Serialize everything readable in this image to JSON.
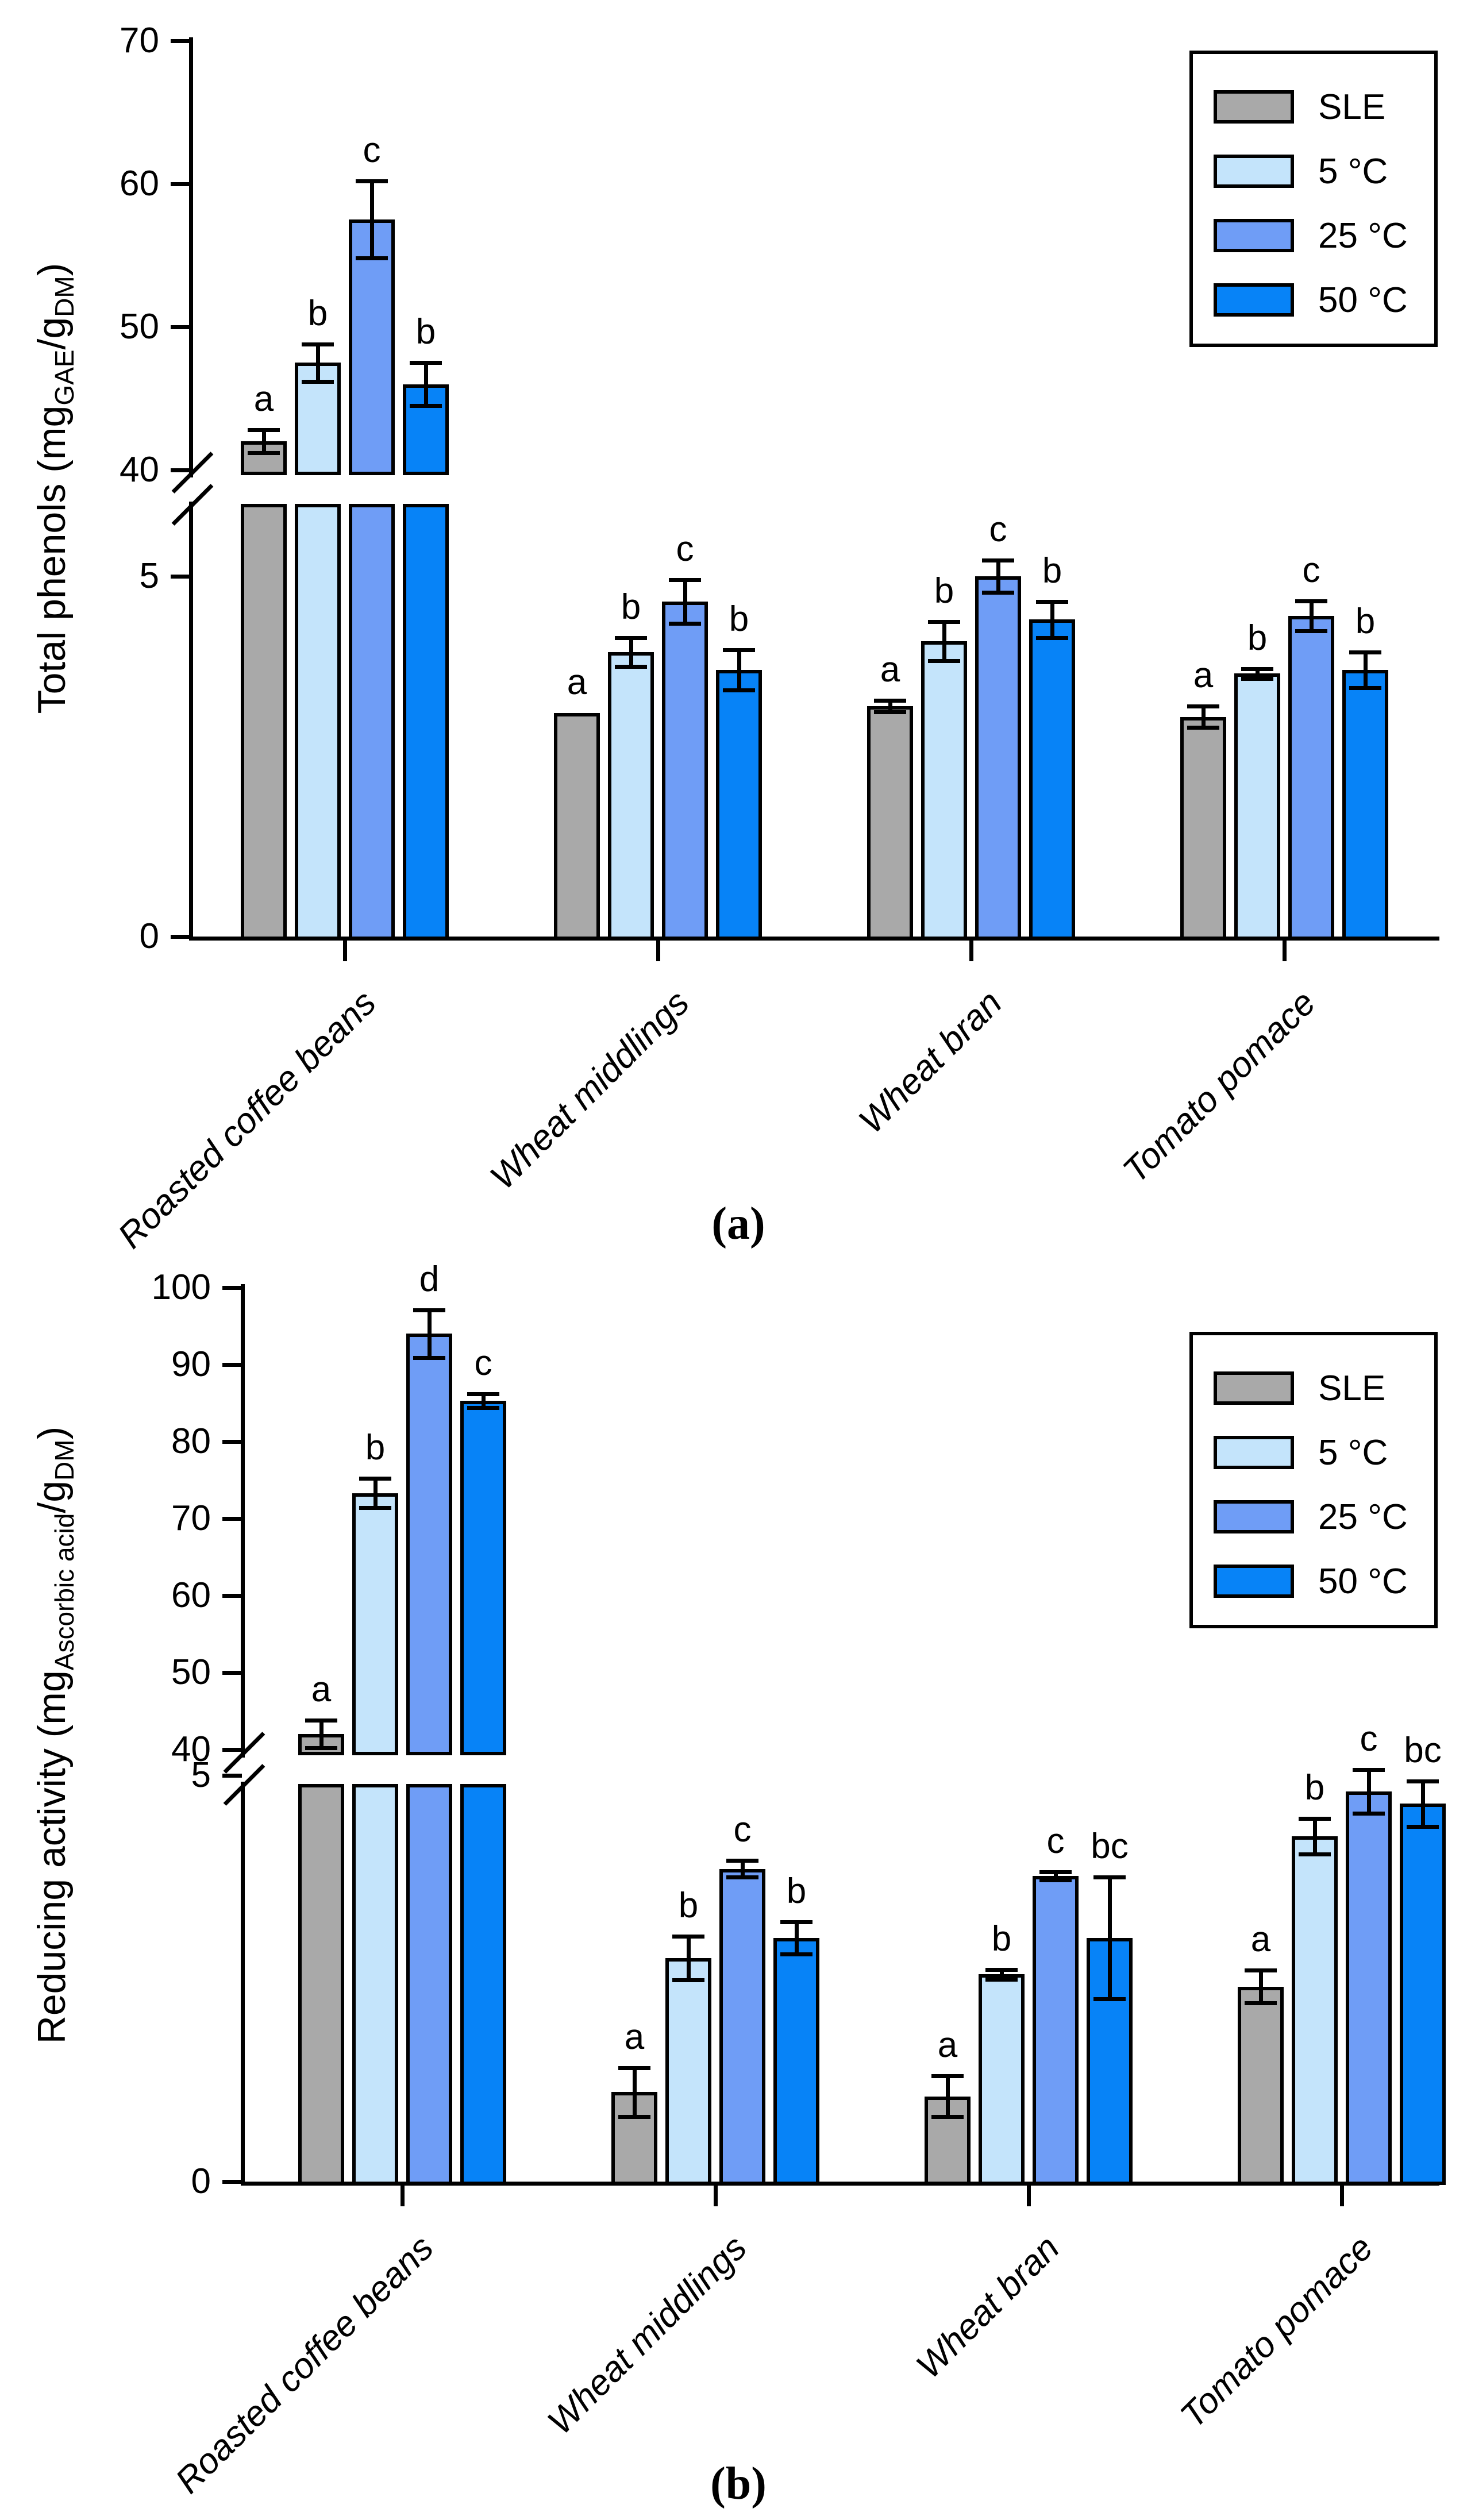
{
  "figure": {
    "legend": {
      "position": "top-right",
      "items": [
        {
          "label": "SLE",
          "color": "#A9A9A9"
        },
        {
          "label": "5 °C",
          "color": "#C4E4FB"
        },
        {
          "label": "25 °C",
          "color": "#6F9DF6"
        },
        {
          "label": "50 °C",
          "color": "#0783F7"
        }
      ]
    },
    "panels": [
      {
        "caption": "(a)",
        "ylabel_parts": {
          "prefix": "Total phenols (mg",
          "sub1": "GAE",
          "mid": "/g",
          "sub2": "DM",
          "suffix": ")"
        },
        "y_axis": {
          "top_ticks": [
            40,
            50,
            60,
            70
          ],
          "low_ticks": [
            0,
            5
          ],
          "break": true
        }
      },
      {
        "caption": "(b)",
        "ylabel_parts": {
          "prefix": "Reducing activity (mg",
          "sub1": "Ascorbic acid",
          "mid": "/g",
          "sub2": "DM",
          "suffix": ")"
        },
        "y_axis": {
          "top_ticks": [
            40,
            50,
            60,
            70,
            80,
            90,
            100
          ],
          "low_ticks": [
            0,
            5
          ],
          "break": true
        }
      }
    ]
  },
  "chart_data": [
    {
      "type": "bar",
      "title": "(a)",
      "ylabel": "Total phenols (mg_GAE/g_DM)",
      "xlabel": "",
      "grid": false,
      "legend_position": "top-right",
      "axis_break": {
        "lower_range": [
          0,
          5
        ],
        "upper_range": [
          40,
          70
        ]
      },
      "categories": [
        "Roasted coffee beans",
        "Wheat middlings",
        "Wheat bran",
        "Tomato pomace"
      ],
      "series": [
        {
          "name": "SLE",
          "values": [
            42.0,
            3.1,
            3.2,
            3.05
          ],
          "errors": [
            0.8,
            0,
            0.08,
            0.15
          ],
          "sig": [
            "a",
            "a",
            "a",
            "a"
          ]
        },
        {
          "name": "5 °C",
          "values": [
            47.5,
            3.95,
            4.1,
            3.65
          ],
          "errors": [
            1.3,
            0.2,
            0.27,
            0.07
          ],
          "sig": [
            "b",
            "b",
            "b",
            "b"
          ]
        },
        {
          "name": "25 °C",
          "values": [
            57.5,
            4.65,
            5.0,
            4.45
          ],
          "errors": [
            2.7,
            0.3,
            0.22,
            0.21
          ],
          "sig": [
            "c",
            "c",
            "c",
            "c"
          ]
        },
        {
          "name": "50 °C",
          "values": [
            46.0,
            3.7,
            4.4,
            3.7
          ],
          "errors": [
            1.5,
            0.28,
            0.25,
            0.25
          ],
          "sig": [
            "b",
            "b",
            "b",
            "b"
          ]
        }
      ]
    },
    {
      "type": "bar",
      "title": "(b)",
      "ylabel": "Reducing activity (mg_Ascorbic acid/g_DM)",
      "xlabel": "",
      "grid": false,
      "legend_position": "top-right",
      "axis_break": {
        "lower_range": [
          0,
          5
        ],
        "upper_range": [
          40,
          100
        ]
      },
      "categories": [
        "Roasted coffee beans",
        "Wheat middlings",
        "Wheat bran",
        "Tomato pomace"
      ],
      "series": [
        {
          "name": "SLE",
          "values": [
            42.0,
            1.1,
            1.05,
            2.4
          ],
          "errors": [
            1.8,
            0.3,
            0.25,
            0.2
          ],
          "sig": [
            "a",
            "a",
            "a",
            "a"
          ]
        },
        {
          "name": "5 °C",
          "values": [
            73.3,
            2.75,
            2.55,
            4.25
          ],
          "errors": [
            1.9,
            0.27,
            0.06,
            0.22
          ],
          "sig": [
            "b",
            "b",
            "b",
            "b"
          ]
        },
        {
          "name": "25 °C",
          "values": [
            94.0,
            3.85,
            3.76,
            4.8
          ],
          "errors": [
            3.1,
            0.1,
            0.05,
            0.27
          ],
          "sig": [
            "d",
            "c",
            "c",
            "c"
          ]
        },
        {
          "name": "50 °C",
          "values": [
            85.3,
            3.0,
            3.0,
            4.65
          ],
          "errors": [
            0.9,
            0.2,
            0.75,
            0.28
          ],
          "sig": [
            "c",
            "b",
            "bc",
            "bc"
          ]
        }
      ]
    }
  ]
}
